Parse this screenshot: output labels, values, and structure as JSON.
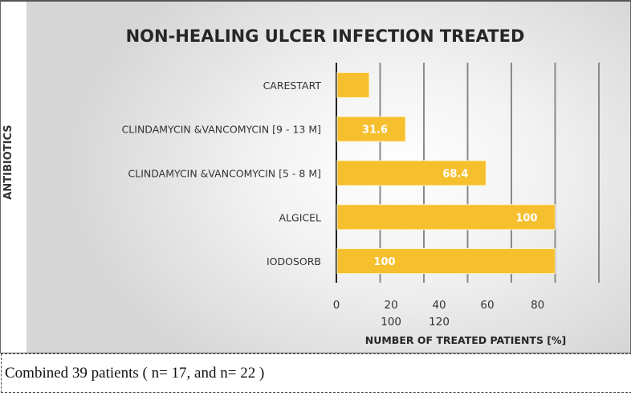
{
  "chart_data": {
    "type": "bar",
    "orientation": "horizontal",
    "title": "NON-HEALING ULCER INFECTION  TREATED",
    "ylabel": "ANTIBIOTICS",
    "xlabel": "NUMBER OF TREATED PATIENTS [%]",
    "categories": [
      "CARESTART",
      "CLINDAMYCIN &VANCOMYCIN [9 - 13 M]",
      "CLINDAMYCIN &VANCOMYCIN [5 - 8 M]",
      "ALGICEL",
      "IODOSORB"
    ],
    "values": [
      15,
      31.6,
      68.4,
      100,
      100
    ],
    "data_labels": [
      "",
      "31.6",
      "68.4",
      "100",
      "100"
    ],
    "xlim": [
      0,
      120
    ],
    "tick_labels": [
      "0",
      "20",
      "40",
      "60",
      "80",
      "100",
      "120"
    ],
    "grid": true,
    "bar_color": "#f5bf2e",
    "label_color": "#ffffff"
  },
  "caption": "Combined 39 patients ( n= 17, and n= 22 )"
}
